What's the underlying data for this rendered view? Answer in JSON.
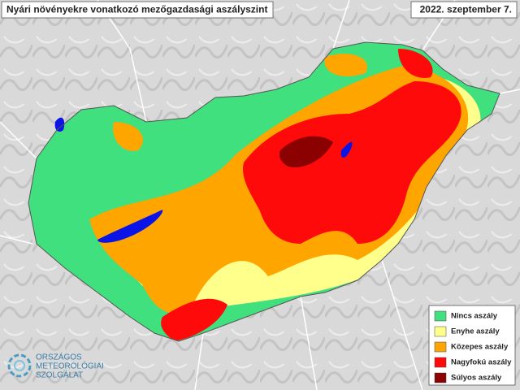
{
  "header": {
    "title": "Nyári növényekre vonatkozó mezőgazdasági aszályszint",
    "date": "2022. szeptember 7."
  },
  "legend": {
    "items": [
      {
        "label": "Nincs aszály",
        "color": "#3fe07d"
      },
      {
        "label": "Enyhe aszály",
        "color": "#ffff8c"
      },
      {
        "label": "Közepes aszály",
        "color": "#ffa500"
      },
      {
        "label": "Nagyfokú aszály",
        "color": "#ff0a0a"
      },
      {
        "label": "Súlyos aszály",
        "color": "#8b0000"
      }
    ]
  },
  "logo": {
    "lines": [
      "ORSZÁGOS",
      "METEOROLÓGIAI",
      "SZOLGÁLAT"
    ]
  }
}
